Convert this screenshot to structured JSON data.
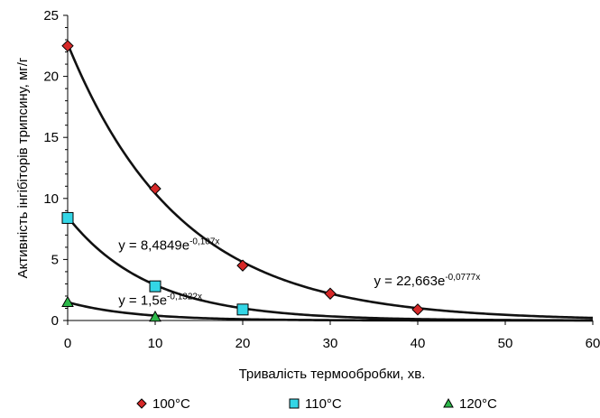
{
  "chart_data": {
    "type": "scatter",
    "xlabel": "Тривалість термообробки, хв.",
    "ylabel": "Активність інгібіторів трипсину, мг/г",
    "xlim": [
      0,
      60
    ],
    "ylim": [
      0,
      25
    ],
    "x_ticks": [
      "0",
      "10",
      "20",
      "30",
      "40",
      "50",
      "60"
    ],
    "y_ticks": [
      "0",
      "5",
      "10",
      "15",
      "20",
      "25"
    ],
    "grid": false,
    "legend_position": "bottom",
    "series": [
      {
        "name": "100°C",
        "marker": "diamond",
        "color": "#d62828",
        "x": [
          0,
          10,
          20,
          30,
          40
        ],
        "y": [
          22.5,
          10.8,
          4.5,
          2.2,
          0.9
        ],
        "trend": {
          "a": 22.663,
          "b": -0.0777
        },
        "equation": {
          "base": "y = 22,663e",
          "exp": "-0,0777x"
        }
      },
      {
        "name": "110°C",
        "marker": "square",
        "color": "#33d6e6",
        "x": [
          0,
          10,
          20
        ],
        "y": [
          8.4,
          2.8,
          0.9
        ],
        "trend": {
          "a": 8.4849,
          "b": -0.107
        },
        "equation": {
          "base": "y = 8,4849e",
          "exp": "-0,107x"
        }
      },
      {
        "name": "120°C",
        "marker": "triangle",
        "color": "#2db84a",
        "x": [
          0,
          10
        ],
        "y": [
          1.5,
          0.3
        ],
        "trend": {
          "a": 1.5,
          "b": -0.1322
        },
        "equation": {
          "base": "y = 1,5e",
          "exp": "-0,1322x"
        }
      }
    ]
  }
}
